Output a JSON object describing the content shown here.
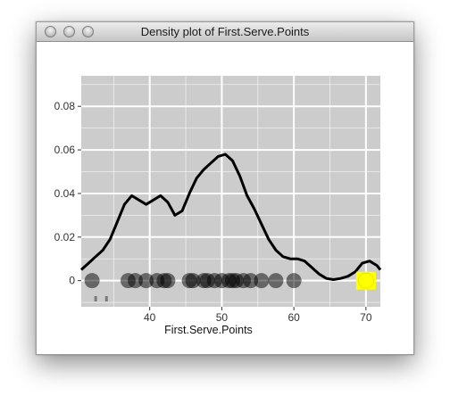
{
  "window": {
    "title": "Density plot of First.Serve.Points",
    "buttons": [
      "close-button",
      "minimize-button",
      "zoom-button"
    ]
  },
  "colors": {
    "panel": "#cccccc",
    "grid": "#ffffff",
    "curve": "#000000",
    "point": "#000000",
    "highlight": "#ffff00"
  },
  "chart_data": {
    "type": "line",
    "title": "",
    "xlabel": "First.Serve.Points",
    "ylabel": "",
    "xlim": [
      30.5,
      72
    ],
    "ylim": [
      -0.012,
      0.094
    ],
    "xticks": [
      40,
      50,
      60,
      70
    ],
    "yticks": [
      0,
      0.02,
      0.04,
      0.06,
      0.08
    ],
    "ytick_labels": [
      "0",
      "0.02",
      "0.04",
      "0.06",
      "0.08"
    ],
    "grid": true,
    "series": [
      {
        "x": [
          30.5,
          31.5,
          32.5,
          33.5,
          34.5,
          35.5,
          36.5,
          37.5,
          38.5,
          39.5,
          40.5,
          41.5,
          42.5,
          43.5,
          44.5,
          45.5,
          46.5,
          47.5,
          48.5,
          49.5,
          50.5,
          51.5,
          52.5,
          53.5,
          54.5,
          55.5,
          56.5,
          57.5,
          58.5,
          59.5,
          60.5,
          61.5,
          62.5,
          63.5,
          64.5,
          65.5,
          66.5,
          67.5,
          68.5,
          69.5,
          70.5,
          71.5,
          72
        ],
        "y": [
          0.005,
          0.008,
          0.011,
          0.014,
          0.019,
          0.027,
          0.035,
          0.039,
          0.037,
          0.035,
          0.037,
          0.039,
          0.036,
          0.03,
          0.032,
          0.04,
          0.047,
          0.051,
          0.054,
          0.057,
          0.058,
          0.055,
          0.048,
          0.039,
          0.033,
          0.026,
          0.019,
          0.014,
          0.011,
          0.01,
          0.01,
          0.009,
          0.006,
          0.003,
          0.001,
          0.0005,
          0.001,
          0.002,
          0.004,
          0.008,
          0.009,
          0.007,
          0.005
        ]
      }
    ],
    "points": {
      "y": 0,
      "x": [
        32,
        37,
        38,
        39.5,
        41,
        42,
        42.5,
        45.5,
        46,
        47.5,
        48,
        49,
        50,
        51,
        51.5,
        52,
        53,
        54,
        55.5,
        57.5,
        60,
        70
      ],
      "highlighted": [
        70
      ]
    },
    "rug": {
      "x": [
        32.5,
        34
      ]
    }
  }
}
